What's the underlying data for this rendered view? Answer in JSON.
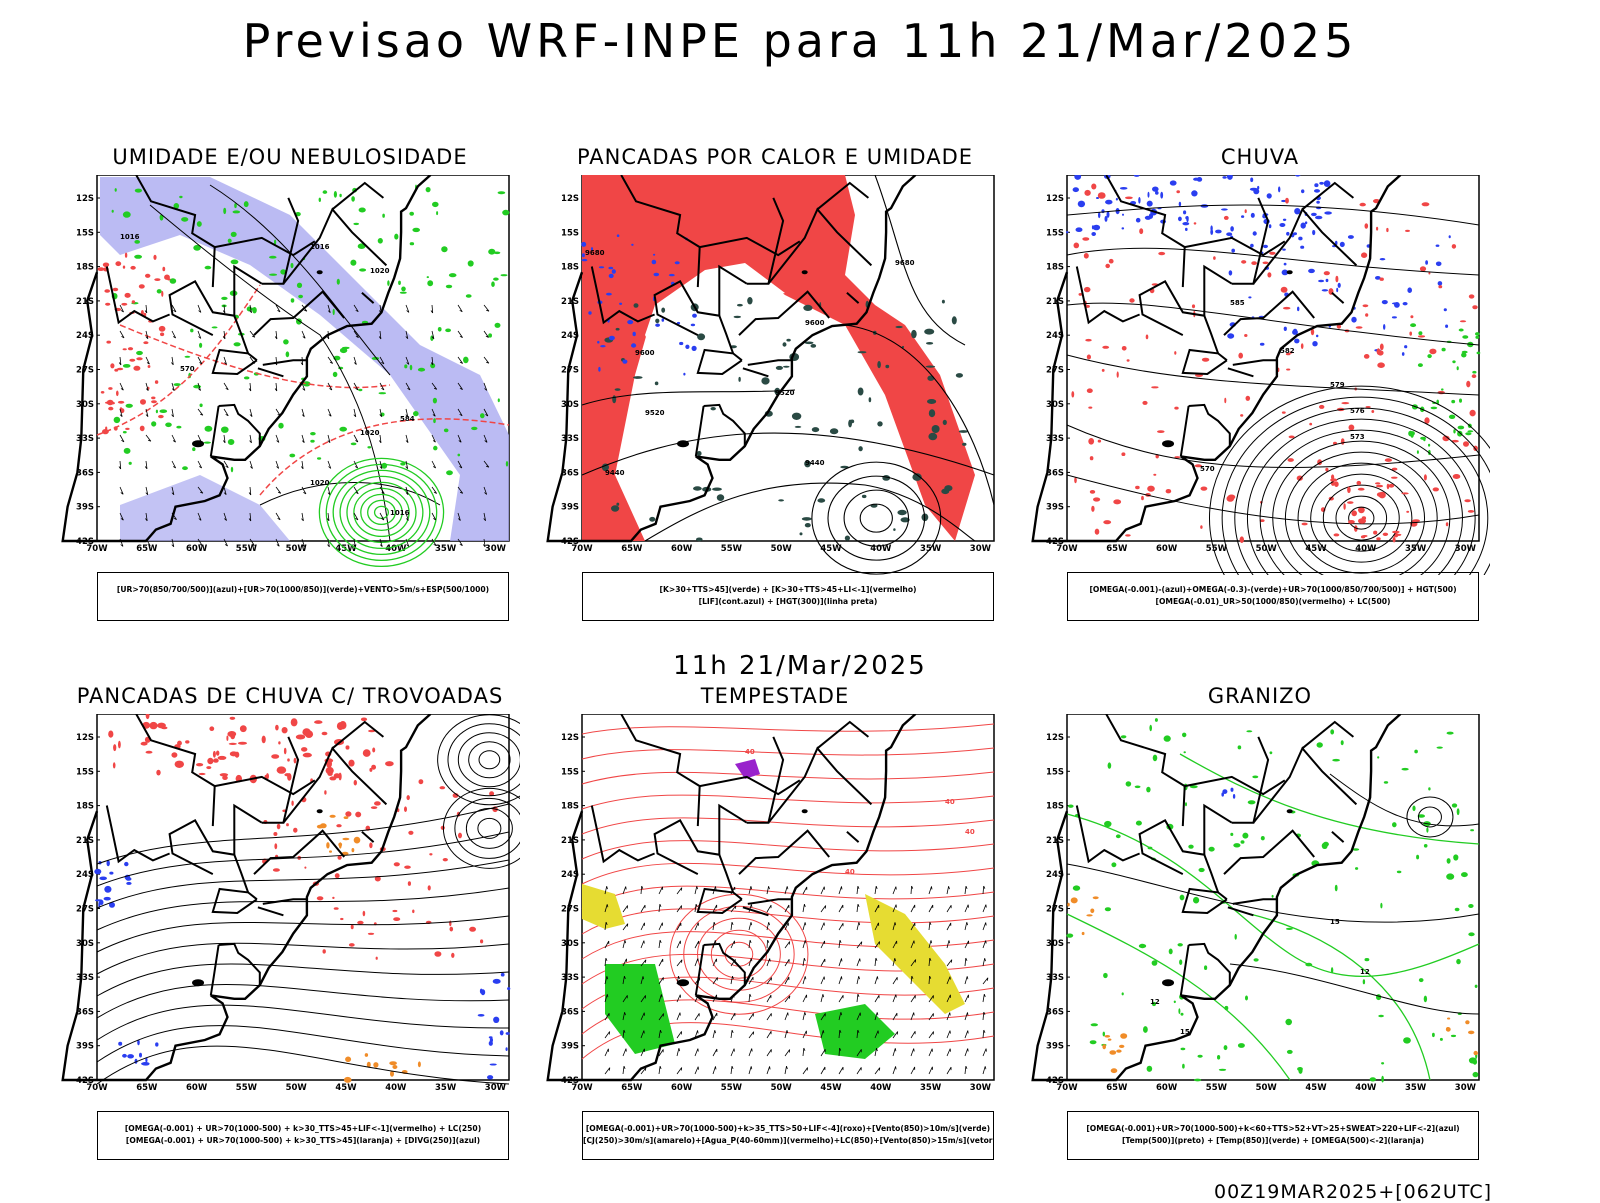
{
  "title": "Previsao WRF-INPE  para 11h 21/Mar/2025",
  "mid_title": "11h 21/Mar/2025",
  "footer": "00Z19MAR2025+[062UTC]",
  "axes": {
    "lat_ticks": [
      "12S",
      "15S",
      "18S",
      "21S",
      "24S",
      "27S",
      "30S",
      "33S",
      "36S",
      "39S",
      "42S"
    ],
    "lon_ticks": [
      "70W",
      "65W",
      "60W",
      "55W",
      "50W",
      "45W",
      "40W",
      "35W",
      "30W"
    ]
  },
  "panels": [
    {
      "id": "umidade",
      "title": "UMIDADE E/OU NEBULOSIDADE",
      "legend": [
        "[UR>70(850/700/500)](azul)+[UR>70(1000/850)](verde)+VENTO>5m/s+ESP(500/1000)"
      ],
      "contour_labels": [
        "1016",
        "1016",
        "1020",
        "1020",
        "1020",
        "1016",
        "584",
        "570"
      ]
    },
    {
      "id": "pancadas_calor",
      "title": "PANCADAS POR CALOR E UMIDADE",
      "legend": [
        "[K>30+TTS>45](verde) + [K>30+TTS>45+LI<-1](vermelho)",
        "[LIF](cont.azul) + [HGT(300)](linha preta)"
      ],
      "contour_labels": [
        "9680",
        "9600",
        "9520",
        "9440",
        "9600",
        "9520",
        "9440",
        "9680"
      ]
    },
    {
      "id": "chuva",
      "title": "CHUVA",
      "legend": [
        "[OMEGA(-0.001)-(azul)+OMEGA(-0.3)-(verde)+UR>70(1000/850/700/500)] + HGT(500)",
        "[OMEGA(-0.01)_UR>50(1000/850)(vermelho) + LC(500)"
      ],
      "contour_labels": [
        "585",
        "582",
        "579",
        "576",
        "573",
        "570"
      ]
    },
    {
      "id": "trovoadas",
      "title": "PANCADAS DE CHUVA C/ TROVOADAS",
      "legend": [
        "[OMEGA(-0.001) + UR>70(1000-500) + k>30_TTS>45+LIF<-1](vermelho) + LC(250)",
        "[OMEGA(-0.001) + UR>70(1000-500) + k>30_TTS>45](laranja) + [DIVG(250)](azul)"
      ],
      "contour_labels": []
    },
    {
      "id": "tempestade",
      "title": "TEMPESTADE",
      "legend": [
        "[OMEGA(-0.001)+UR>70(1000-500)+k>35_TTS>50+LIF<-4](roxo)+[Vento(850)>10m/s](verde)",
        "[CJ(250)>30m/s](amarelo)+[Agua_P(40-60mm)](vermelho)+LC(850)+[Vento(850)>15m/s](vetor)"
      ],
      "contour_labels": [
        "40",
        "40",
        "40",
        "40"
      ]
    },
    {
      "id": "granizo",
      "title": "GRANIZO",
      "legend": [
        "[OMEGA(-0.001)+UR>70(1000-500)+k<60+TTS>52+VT>25+SWEAT>220+LIF<-2](azul)",
        "[Temp(500)](preto) + [Temp(850)](verde) + [OMEGA(500)<-2](laranja)"
      ],
      "contour_labels": [
        "12",
        "15",
        "15",
        "12"
      ]
    }
  ],
  "colors": {
    "red": "#f04646",
    "blue": "#2a3ef0",
    "green": "#22cc22",
    "lavender": "#aaaaf0",
    "orange": "#f08c28",
    "yellow": "#e6dc32",
    "purple": "#9922cc",
    "darkgreen": "#2a4a44"
  }
}
